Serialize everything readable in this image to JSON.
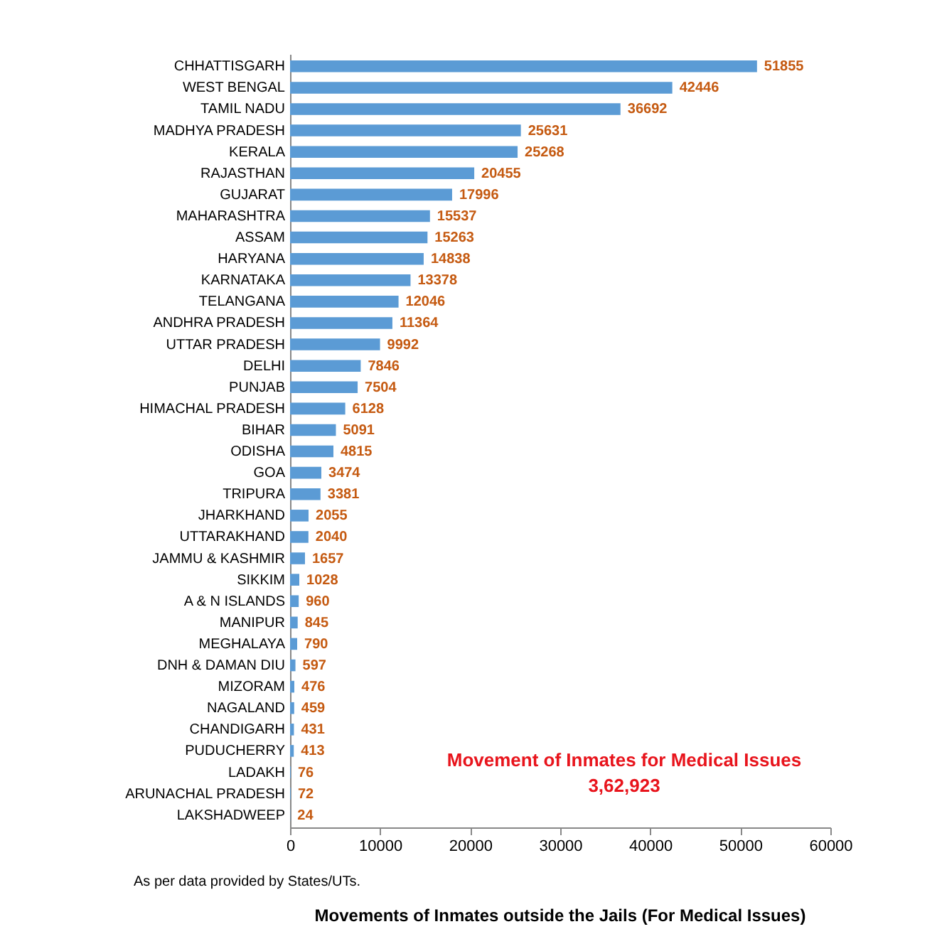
{
  "chart_data": {
    "type": "bar",
    "orientation": "horizontal",
    "title": "Movements of Inmates outside the Jails (For Medical Issues)",
    "categories": [
      "CHHATTISGARH",
      "WEST BENGAL",
      "TAMIL NADU",
      "MADHYA PRADESH",
      "KERALA",
      "RAJASTHAN",
      "GUJARAT",
      "MAHARASHTRA",
      "ASSAM",
      "HARYANA",
      "KARNATAKA",
      "TELANGANA",
      "ANDHRA PRADESH",
      "UTTAR PRADESH",
      "DELHI",
      "PUNJAB",
      "HIMACHAL PRADESH",
      "BIHAR",
      "ODISHA",
      "GOA",
      "TRIPURA",
      "JHARKHAND",
      "UTTARAKHAND",
      "JAMMU & KASHMIR",
      "SIKKIM",
      "A & N ISLANDS",
      "MANIPUR",
      "MEGHALAYA",
      "DNH & DAMAN DIU",
      "MIZORAM",
      "NAGALAND",
      "CHANDIGARH",
      "PUDUCHERRY",
      "LADAKH",
      "ARUNACHAL PRADESH",
      "LAKSHADWEEP"
    ],
    "values": [
      51855,
      42446,
      36692,
      25631,
      25268,
      20455,
      17996,
      15537,
      15263,
      14838,
      13378,
      12046,
      11364,
      9992,
      7846,
      7504,
      6128,
      5091,
      4815,
      3474,
      3381,
      2055,
      2040,
      1657,
      1028,
      960,
      845,
      790,
      597,
      476,
      459,
      431,
      413,
      76,
      72,
      24
    ],
    "color": "#5b9bd5",
    "data_labels": true,
    "xlim": [
      0,
      60000
    ],
    "xticks": [
      0,
      10000,
      20000,
      30000,
      40000,
      50000,
      60000
    ],
    "grid": false,
    "annotations": [
      "Movement of Inmates for Medical Issues",
      "3,62,923",
      "As per data provided by States/UTs."
    ]
  }
}
